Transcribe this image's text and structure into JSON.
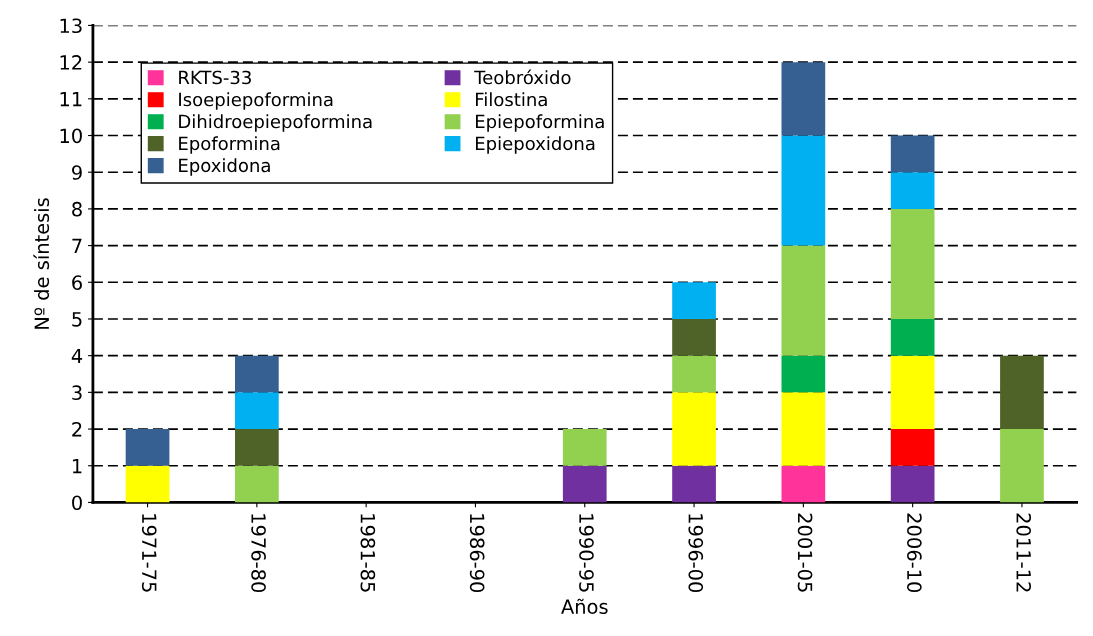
{
  "chart_data": {
    "type": "bar",
    "stacked": true,
    "xlabel": "Años",
    "ylabel": "Nº de síntesis",
    "categories": [
      "1971-75",
      "1976-80",
      "1981-85",
      "1986-90",
      "1990-95",
      "1996-00",
      "2001-05",
      "2006-10",
      "2011-12"
    ],
    "series": [
      {
        "name": "RKTS-33",
        "color": "#ff3399",
        "values": [
          0,
          0,
          0,
          0,
          0,
          0,
          1,
          0,
          0
        ]
      },
      {
        "name": "Teobróxido",
        "color": "#7030a0",
        "values": [
          0,
          0,
          0,
          0,
          1,
          1,
          0,
          1,
          0
        ]
      },
      {
        "name": "Isoepiepoformina",
        "color": "#ff0000",
        "values": [
          0,
          0,
          0,
          0,
          0,
          0,
          0,
          1,
          0
        ]
      },
      {
        "name": "Filostina",
        "color": "#ffff00",
        "values": [
          1,
          0,
          0,
          0,
          0,
          2,
          2,
          2,
          0
        ]
      },
      {
        "name": "Dihidroepiepoformina",
        "color": "#00b050",
        "values": [
          0,
          0,
          0,
          0,
          0,
          0,
          1,
          1,
          0
        ]
      },
      {
        "name": "Epiepoformina",
        "color": "#92d050",
        "values": [
          0,
          1,
          0,
          0,
          1,
          1,
          3,
          3,
          2
        ]
      },
      {
        "name": "Epoformina",
        "color": "#4f6228",
        "values": [
          0,
          1,
          0,
          0,
          0,
          1,
          0,
          0,
          2
        ]
      },
      {
        "name": "Epiepoxidona",
        "color": "#00b0f0",
        "values": [
          0,
          1,
          0,
          0,
          0,
          1,
          3,
          1,
          0
        ]
      },
      {
        "name": "Epoxidona",
        "color": "#376092",
        "values": [
          1,
          1,
          0,
          0,
          0,
          0,
          2,
          1,
          0
        ]
      }
    ],
    "ylim": [
      0,
      13
    ],
    "yticks": [
      0,
      1,
      2,
      3,
      4,
      5,
      6,
      7,
      8,
      9,
      10,
      11,
      12,
      13
    ],
    "grid": "y",
    "legend": "top left"
  }
}
